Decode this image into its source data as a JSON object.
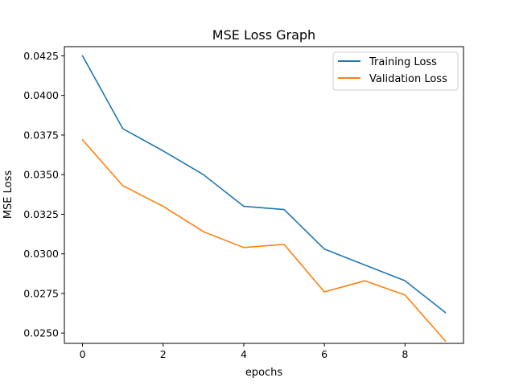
{
  "chart_data": {
    "type": "line",
    "title": "MSE Loss Graph",
    "xlabel": "epochs",
    "ylabel": "MSE Loss",
    "x": [
      0,
      1,
      2,
      3,
      4,
      5,
      6,
      7,
      8,
      9
    ],
    "xlim": [
      -0.45,
      9.45
    ],
    "ylim": [
      0.02435,
      0.04308
    ],
    "xticks": [
      0,
      2,
      4,
      6,
      8
    ],
    "xtick_labels": [
      "0",
      "2",
      "4",
      "6",
      "8"
    ],
    "yticks": [
      0.025,
      0.0275,
      0.03,
      0.0325,
      0.035,
      0.0375,
      0.04,
      0.0425
    ],
    "ytick_labels": [
      "0.0250",
      "0.0275",
      "0.0300",
      "0.0325",
      "0.0350",
      "0.0375",
      "0.0400",
      "0.0425"
    ],
    "grid": false,
    "legend_position": "top-right",
    "series": [
      {
        "name": "Training Loss",
        "color": "#1f77b4",
        "values": [
          0.0425,
          0.0379,
          0.0365,
          0.035,
          0.033,
          0.0328,
          0.0303,
          0.0293,
          0.0283,
          0.0263
        ]
      },
      {
        "name": "Validation Loss",
        "color": "#ff7f0e",
        "values": [
          0.0372,
          0.0343,
          0.033,
          0.0314,
          0.0304,
          0.0306,
          0.0276,
          0.0283,
          0.0274,
          0.0245
        ]
      }
    ]
  }
}
